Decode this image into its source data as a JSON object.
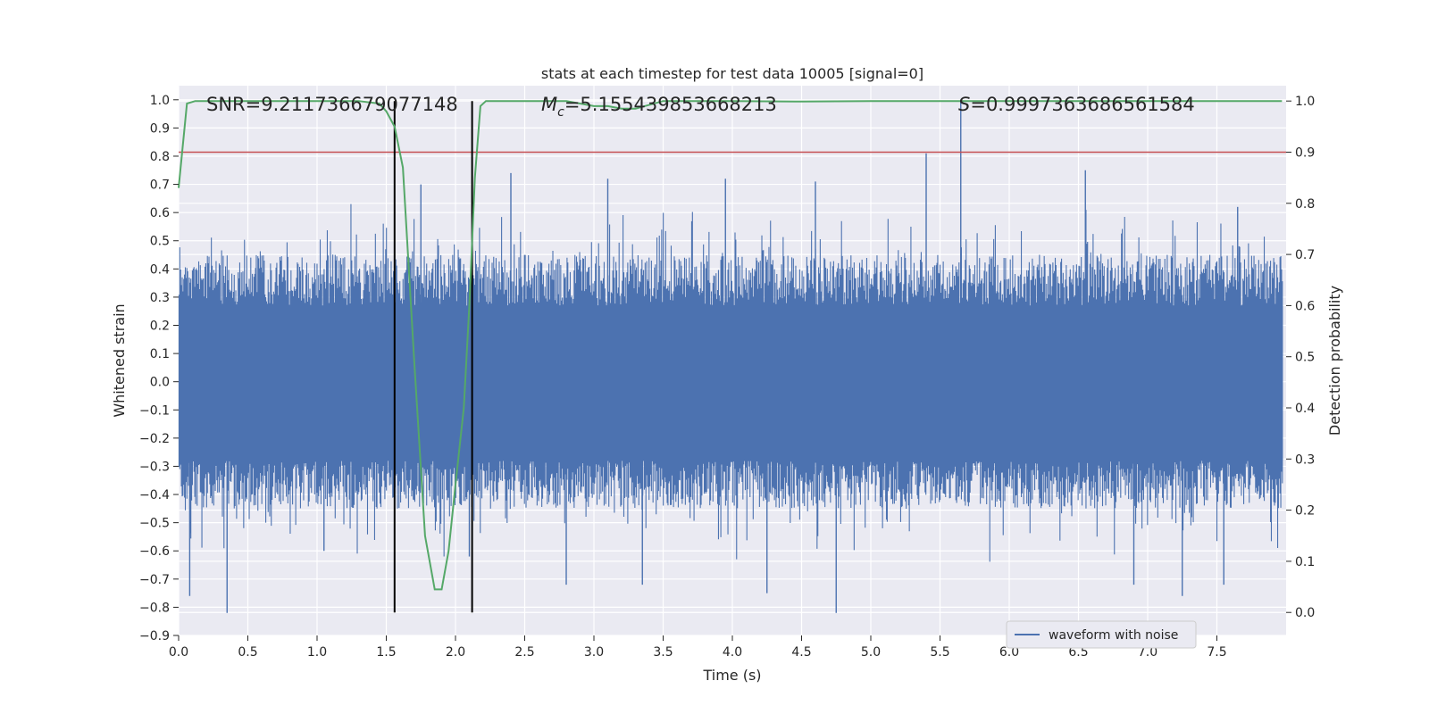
{
  "chart_data": {
    "type": "line",
    "title": "stats at each timestep for test data 10005 [signal=0]",
    "xlabel": "Time (s)",
    "ylabel_left": "Whitened strain",
    "ylabel_right": "Detection probability",
    "xlim": [
      0.0,
      8.0
    ],
    "ylim_left": [
      -0.9,
      1.05
    ],
    "ylim_right": [
      -0.045,
      1.03
    ],
    "x_ticks": [
      0.0,
      0.5,
      1.0,
      1.5,
      2.0,
      2.5,
      3.0,
      3.5,
      4.0,
      4.5,
      5.0,
      5.5,
      6.0,
      6.5,
      7.0,
      7.5
    ],
    "x_tick_labels": [
      "0.0",
      "0.5",
      "1.0",
      "1.5",
      "2.0",
      "2.5",
      "3.0",
      "3.5",
      "4.0",
      "4.5",
      "5.0",
      "5.5",
      "6.0",
      "6.5",
      "7.0",
      "7.5"
    ],
    "y_left_ticks": [
      1.0,
      0.9,
      0.8,
      0.7,
      0.6,
      0.5,
      0.4,
      0.3,
      0.2,
      0.1,
      0.0,
      -0.1,
      -0.2,
      -0.3,
      -0.4,
      -0.5,
      -0.6,
      -0.7,
      -0.8,
      -0.9
    ],
    "y_left_tick_labels": [
      "1.0",
      "0.9",
      "0.8",
      "0.7",
      "0.6",
      "0.5",
      "0.4",
      "0.3",
      "0.2",
      "0.1",
      "0.0",
      "−0.1",
      "−0.2",
      "−0.3",
      "−0.4",
      "−0.5",
      "−0.6",
      "−0.7",
      "−0.8",
      "−0.9"
    ],
    "y_right_ticks": [
      1.0,
      0.9,
      0.8,
      0.7,
      0.6,
      0.5,
      0.4,
      0.3,
      0.2,
      0.1,
      0.0
    ],
    "y_right_tick_labels": [
      "1.0",
      "0.9",
      "0.8",
      "0.7",
      "0.6",
      "0.5",
      "0.4",
      "0.3",
      "0.2",
      "0.1",
      "0.0"
    ],
    "grid": true,
    "legend_position": "bottom-right",
    "legend_entries": [
      "waveform with noise"
    ],
    "annotations": {
      "snr": "SNR=9.211736679077148",
      "mc_label": "M",
      "mc_sub": "c",
      "mc_value": "=5.155439853668213",
      "s_label": "S",
      "s_value": "=0.9997363686561584"
    },
    "waveform": {
      "name": "waveform with noise",
      "color": "#4c72b0",
      "dense_band": [
        -0.28,
        0.27
      ],
      "typical_upper": 0.45,
      "typical_lower": -0.45,
      "peaks": [
        {
          "x": 0.35,
          "y": -0.82
        },
        {
          "x": 0.08,
          "y": -0.76
        },
        {
          "x": 1.75,
          "y": 0.7
        },
        {
          "x": 2.4,
          "y": 0.74
        },
        {
          "x": 4.75,
          "y": -0.82
        },
        {
          "x": 5.4,
          "y": 0.81
        },
        {
          "x": 5.65,
          "y": 1.0
        },
        {
          "x": 6.55,
          "y": 0.75
        },
        {
          "x": 7.25,
          "y": -0.76
        },
        {
          "x": 1.05,
          "y": -0.6
        },
        {
          "x": 3.1,
          "y": 0.72
        },
        {
          "x": 3.35,
          "y": -0.72
        },
        {
          "x": 3.95,
          "y": 0.72
        },
        {
          "x": 4.25,
          "y": -0.75
        },
        {
          "x": 4.6,
          "y": 0.71
        },
        {
          "x": 6.9,
          "y": -0.72
        },
        {
          "x": 7.55,
          "y": -0.72
        },
        {
          "x": 7.65,
          "y": 0.62
        },
        {
          "x": 2.8,
          "y": -0.72
        },
        {
          "x": 2.1,
          "y": -0.62
        }
      ]
    },
    "detection_probability": {
      "color": "#55a868",
      "x": [
        0.0,
        0.06,
        0.12,
        0.3,
        0.6,
        1.0,
        1.3,
        1.45,
        1.5,
        1.56,
        1.62,
        1.7,
        1.78,
        1.85,
        1.9,
        1.95,
        2.0,
        2.06,
        2.1,
        2.14,
        2.18,
        2.22,
        2.3,
        2.6,
        2.8,
        3.0,
        3.1,
        3.2,
        3.3,
        3.5,
        4.0,
        4.5,
        5.0,
        5.5,
        6.0,
        6.5,
        7.0,
        7.5,
        7.97
      ],
      "y": [
        0.83,
        0.995,
        1.0,
        1.0,
        1.0,
        1.0,
        1.0,
        0.995,
        0.98,
        0.95,
        0.87,
        0.5,
        0.15,
        0.045,
        0.045,
        0.12,
        0.25,
        0.4,
        0.6,
        0.85,
        0.99,
        1.0,
        1.0,
        1.0,
        1.0,
        0.99,
        0.99,
        0.985,
        0.985,
        1.0,
        1.0,
        0.999,
        1.0,
        1.0,
        1.0,
        1.0,
        1.0,
        1.0,
        1.0
      ]
    },
    "threshold_line": {
      "color": "#c44e52",
      "y_right": 0.9
    },
    "event_lines": {
      "color": "#000000",
      "x": [
        1.56,
        2.12
      ],
      "y_right_range": [
        0.0,
        1.0
      ]
    }
  }
}
